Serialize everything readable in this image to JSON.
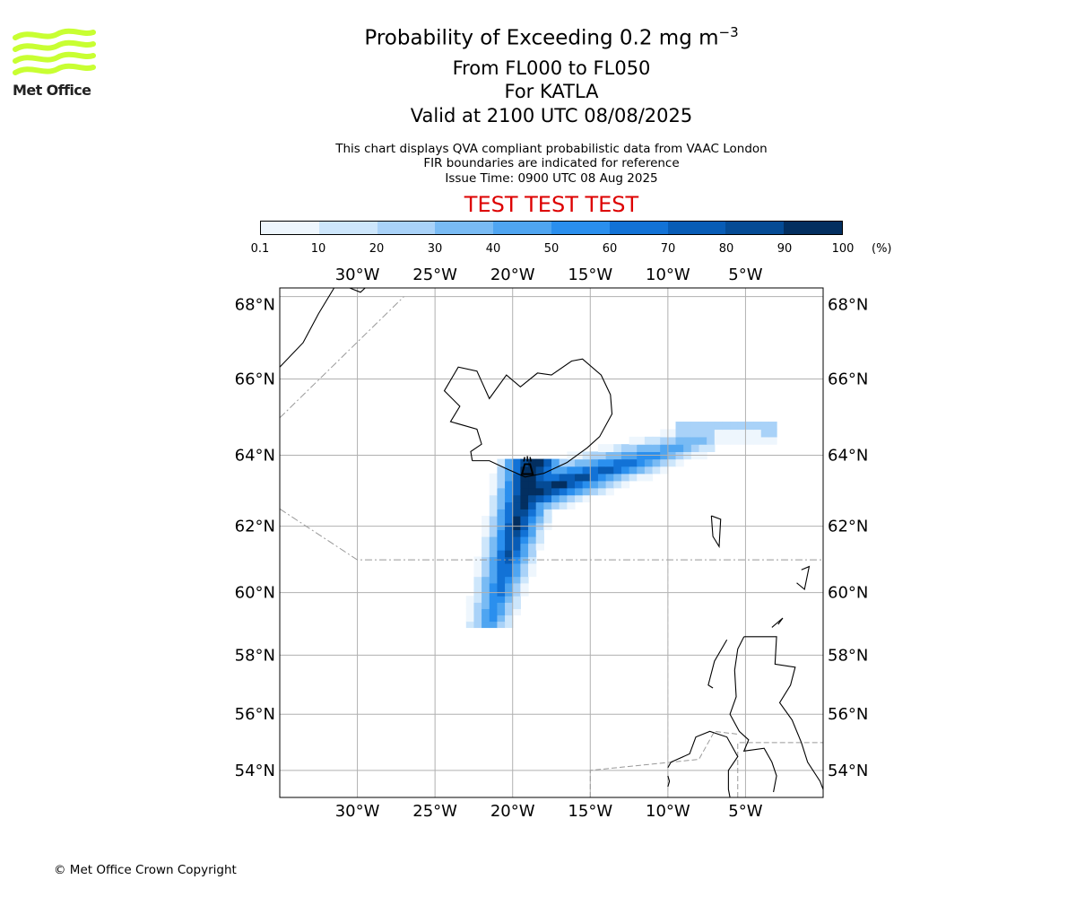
{
  "logo": {
    "text": "Met Office",
    "color": "#c8ff32"
  },
  "title": {
    "main": "Probability of Exceeding 0.2 mg m",
    "main_sup": "−3",
    "line2": "From FL000 to FL050",
    "line3": "For KATLA",
    "line4": "Valid at 2100 UTC 08/08/2025"
  },
  "notes": {
    "line1": "This chart displays QVA compliant probabilistic data from VAAC London",
    "line2": "FIR boundaries are indicated for reference",
    "line3": "Issue Time: 0900 UTC 08 Aug 2025"
  },
  "banner": "TEST TEST TEST",
  "colorbar": {
    "ticks": [
      "0.1",
      "10",
      "20",
      "30",
      "40",
      "50",
      "60",
      "70",
      "80",
      "90",
      "100"
    ],
    "unit": "(%)",
    "colors": [
      "#eef6fd",
      "#cde6fb",
      "#a9d2f8",
      "#79bbf4",
      "#4fa5f1",
      "#2a8fee",
      "#1272d6",
      "#085cb6",
      "#054b95",
      "#032f60"
    ]
  },
  "map": {
    "lon_range": [
      -35,
      0
    ],
    "lat_range": [
      53,
      68.2
    ],
    "lon_labels": [
      "30°W",
      "25°W",
      "20°W",
      "15°W",
      "10°W",
      "5°W"
    ],
    "lat_labels": [
      "54°N",
      "56°N",
      "58°N",
      "60°N",
      "62°N",
      "64°N",
      "66°N",
      "68°N"
    ],
    "volcano": "KATLA"
  },
  "copyright": "© Met Office Crown Copyright"
}
